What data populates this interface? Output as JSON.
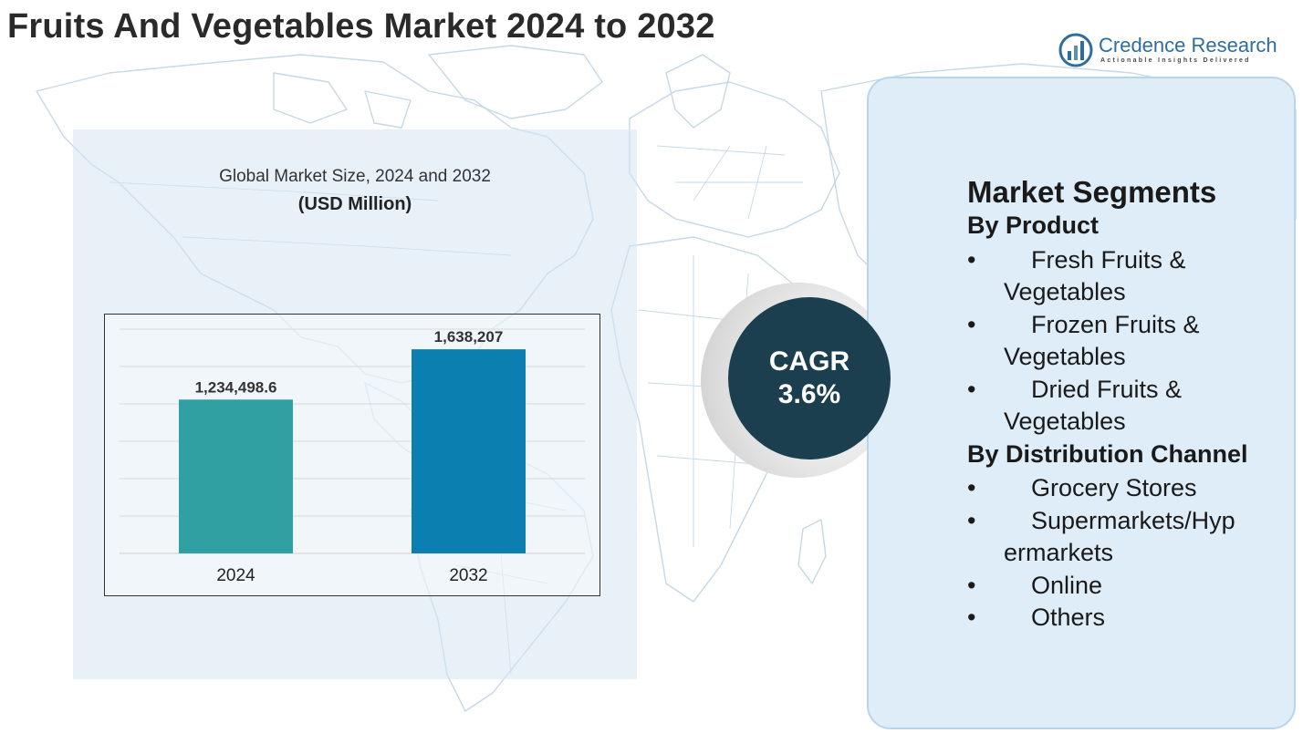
{
  "title": "Fruits And Vegetables Market 2024 to 2032",
  "logo": {
    "name": "Credence Research",
    "tagline": "Actionable Insights Delivered",
    "icon": "bar-chart-logo-icon",
    "color": "#2e6d9e"
  },
  "chart_data": {
    "type": "bar",
    "title": "Global Market Size, 2024 and 2032",
    "unit_label": "(USD Million)",
    "categories": [
      "2024",
      "2032"
    ],
    "values": [
      1234498.6,
      1638207
    ],
    "value_labels": [
      "1,234,498.6",
      "1,638,207"
    ],
    "colors": [
      "#30a0a2",
      "#0a7fb0"
    ],
    "xlabel": "",
    "ylabel": "",
    "ylim": [
      0,
      1800000
    ],
    "grid": true
  },
  "cagr": {
    "label": "CAGR",
    "value": "3.6%",
    "color": "#1c3f50"
  },
  "segments": {
    "title": "Market Segments",
    "bullet": "•",
    "by_product": {
      "title": "By Product",
      "items": [
        {
          "line1": "Fresh Fruits &",
          "line2": "Vegetables"
        },
        {
          "line1": "Frozen Fruits &",
          "line2": "Vegetables"
        },
        {
          "line1": "Dried Fruits &",
          "line2": "Vegetables"
        }
      ]
    },
    "by_distribution": {
      "title": "By Distribution Channel",
      "items": [
        {
          "line1": "Grocery Stores",
          "line2": ""
        },
        {
          "line1": "Supermarkets/Hyp",
          "line2": "ermarkets"
        },
        {
          "line1": "Online",
          "line2": ""
        },
        {
          "line1": "Others",
          "line2": ""
        }
      ]
    }
  }
}
